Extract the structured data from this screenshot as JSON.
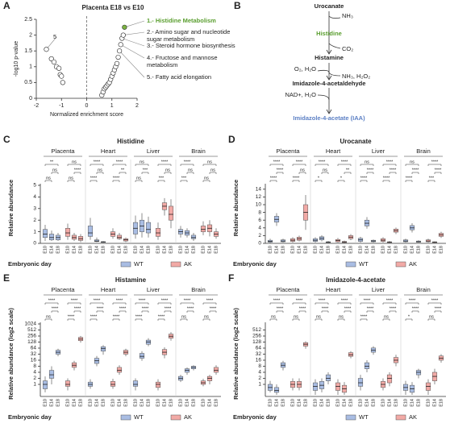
{
  "chart_data": [
    {
      "type": "scatter",
      "panel": "A",
      "title": "Placenta E18 vs E10",
      "xlabel": "Normalized enrichment score",
      "ylabel": "-log10 p-value",
      "x": [
        -1.6,
        -1.4,
        -1.3,
        -1.2,
        -1.1,
        -1.05,
        -1.0,
        -0.95,
        0.6,
        0.65,
        0.7,
        0.75,
        0.8,
        0.85,
        0.9,
        0.95,
        1.0,
        1.05,
        1.1,
        1.15,
        1.2,
        1.25,
        1.3,
        1.35,
        1.4,
        1.45,
        1.5
      ],
      "y": [
        1.55,
        1.25,
        1.15,
        1.0,
        0.95,
        0.75,
        0.7,
        0.5,
        0.1,
        0.2,
        0.3,
        0.35,
        0.4,
        0.45,
        0.5,
        0.6,
        0.7,
        0.8,
        0.9,
        1.0,
        1.1,
        1.3,
        1.5,
        1.7,
        1.9,
        2.0,
        2.25
      ],
      "xlim": [
        -2,
        2
      ],
      "ylim": [
        0,
        2.5
      ],
      "xticks": [
        -2,
        -1,
        0,
        1,
        2
      ],
      "yticks": [
        0,
        0.5,
        1,
        1.5,
        2,
        2.5
      ],
      "color": "#ffffff",
      "highlight": 26,
      "highlight_color": "#7cb342",
      "annotations": [
        {
          "lines": [
            "1.- Histidine Metabolism"
          ],
          "point": 26,
          "color": "#5a9e2f"
        },
        {
          "lines": [
            "2.- Amino sugar and nucleotide",
            "sugar metabolism"
          ],
          "point": 25,
          "color": "#222222"
        },
        {
          "lines": [
            "3.- Steroid hormone biosynthesis"
          ],
          "point": 24,
          "color": "#222222"
        },
        {
          "lines": [
            "4.- Fructose and mannose",
            "metabolism"
          ],
          "point": 23,
          "color": "#222222"
        },
        {
          "lines": [
            "5.- Fatty acid elongation"
          ],
          "point": 22,
          "color": "#222222"
        },
        {
          "lines": [
            "5"
          ],
          "point": 0,
          "color": "#222222"
        }
      ]
    },
    {
      "type": "box",
      "panel": "C",
      "title": "Histidine",
      "ylabel": "Relative abundance",
      "xlabel": "Embryonic day",
      "groups": [
        "Placenta",
        "Heart",
        "Liver",
        "Brain"
      ],
      "timepoints": [
        "E10",
        "E14",
        "E18"
      ],
      "ylim": [
        0,
        5
      ],
      "yticks": [
        0,
        1,
        2,
        3,
        4,
        5
      ],
      "series": [
        {
          "name": "WT",
          "color": "#a9bde3",
          "values": [
            [
              0.2,
              0.5,
              0.8,
              1.2,
              1.6
            ],
            [
              0.2,
              0.3,
              0.5,
              0.8,
              1.1
            ],
            [
              0.2,
              0.3,
              0.5,
              0.7,
              0.9
            ],
            [
              0.3,
              0.6,
              0.9,
              1.5,
              2.2
            ],
            [
              0.1,
              0.15,
              0.2,
              0.3,
              0.5
            ],
            [
              0.05,
              0.08,
              0.1,
              0.15,
              0.2
            ],
            [
              0.4,
              0.8,
              1.3,
              1.8,
              2.4
            ],
            [
              0.5,
              1.0,
              1.5,
              2.0,
              2.6
            ],
            [
              0.5,
              0.9,
              1.2,
              1.8,
              2.3
            ],
            [
              0.5,
              0.8,
              1.0,
              1.2,
              1.5
            ],
            [
              0.5,
              0.7,
              0.9,
              1.1,
              1.3
            ],
            [
              0.2,
              0.4,
              0.5,
              0.7,
              0.9
            ]
          ]
        },
        {
          "name": "AK",
          "color": "#f2aaa6",
          "values": [
            [
              0.3,
              0.6,
              0.9,
              1.3,
              1.7
            ],
            [
              0.2,
              0.35,
              0.5,
              0.7,
              0.9
            ],
            [
              0.1,
              0.25,
              0.4,
              0.6,
              0.8
            ],
            [
              0.4,
              0.6,
              0.8,
              1.0,
              1.3
            ],
            [
              0.3,
              0.4,
              0.5,
              0.7,
              0.9
            ],
            [
              0.1,
              0.2,
              0.3,
              0.4,
              0.5
            ],
            [
              0.3,
              0.6,
              0.9,
              1.3,
              1.8
            ],
            [
              2.4,
              2.9,
              3.2,
              3.5,
              3.9
            ],
            [
              1.3,
              2.0,
              2.5,
              3.2,
              3.8
            ],
            [
              0.7,
              1.0,
              1.2,
              1.5,
              1.9
            ],
            [
              0.6,
              1.0,
              1.3,
              1.6,
              2.0
            ],
            [
              0.4,
              0.6,
              0.8,
              1.0,
              1.3
            ]
          ]
        }
      ],
      "significance": [
        [
          "ns",
          "ns",
          "**",
          "ns",
          "****",
          "ns"
        ],
        [
          "****",
          "ns",
          "****",
          "****",
          "**",
          "****"
        ],
        [
          "ns",
          "***",
          "ns",
          "***",
          "ns",
          "****"
        ],
        [
          "***",
          "ns",
          "****",
          "ns",
          "ns",
          "ns"
        ]
      ]
    },
    {
      "type": "box",
      "panel": "D",
      "title": "Urocanate",
      "ylabel": "Relative abundance",
      "xlabel": "Embryonic day",
      "groups": [
        "Placenta",
        "Heart",
        "Liver",
        "Brain"
      ],
      "timepoints": [
        "E10",
        "E14",
        "E18"
      ],
      "ylim": [
        0,
        15
      ],
      "yticks": [
        0,
        2,
        4,
        6,
        8,
        10,
        12,
        14
      ],
      "series": [
        {
          "name": "WT",
          "color": "#a9bde3",
          "values": [
            [
              0.1,
              0.3,
              0.5,
              0.8,
              1.2
            ],
            [
              4.5,
              5.5,
              6.2,
              7.0,
              7.8
            ],
            [
              0.2,
              0.4,
              0.6,
              0.9,
              1.2
            ],
            [
              0.2,
              0.5,
              0.8,
              1.2,
              1.6
            ],
            [
              0.5,
              0.9,
              1.3,
              1.7,
              2.1
            ],
            [
              0.1,
              0.2,
              0.3,
              0.4,
              0.6
            ],
            [
              0.2,
              0.5,
              0.9,
              1.3,
              1.7
            ],
            [
              3.8,
              4.5,
              5.2,
              6.0,
              6.8
            ],
            [
              0.2,
              0.4,
              0.6,
              0.8,
              1.0
            ],
            [
              0.2,
              0.4,
              0.6,
              0.9,
              1.2
            ],
            [
              2.8,
              3.5,
              4.0,
              4.6,
              5.2
            ],
            [
              0.2,
              0.3,
              0.4,
              0.6,
              0.8
            ]
          ]
        },
        {
          "name": "AK",
          "color": "#f2aaa6",
          "values": [
            [
              0.2,
              0.5,
              0.8,
              1.2,
              1.6
            ],
            [
              0.5,
              0.8,
              1.2,
              1.6,
              2.0
            ],
            [
              3.5,
              6.0,
              8.0,
              10.0,
              12.5
            ],
            [
              0.2,
              0.4,
              0.7,
              1.0,
              1.4
            ],
            [
              0.1,
              0.2,
              0.3,
              0.5,
              0.7
            ],
            [
              0.8,
              1.2,
              1.6,
              2.0,
              2.4
            ],
            [
              0.2,
              0.5,
              0.8,
              1.2,
              1.6
            ],
            [
              0.1,
              0.2,
              0.3,
              0.4,
              0.6
            ],
            [
              2.4,
              2.9,
              3.3,
              3.7,
              4.1
            ],
            [
              0.2,
              0.4,
              0.6,
              0.9,
              1.2
            ],
            [
              0.1,
              0.2,
              0.3,
              0.4,
              0.5
            ],
            [
              1.4,
              1.8,
              2.2,
              2.6,
              3.0
            ]
          ]
        }
      ],
      "significance": [
        [
          "****",
          "****",
          "****",
          "****",
          "ns",
          "****"
        ],
        [
          "*",
          "ns",
          "****",
          "*",
          "**",
          "****"
        ],
        [
          "****",
          "****",
          "ns",
          "****",
          "****",
          "****"
        ],
        [
          "****",
          "****",
          "ns",
          "***",
          "****",
          "****"
        ]
      ]
    },
    {
      "type": "box",
      "panel": "E",
      "title": "Histamine",
      "ylabel": "Relative abundance (log2 scale)",
      "xlabel": "Embryonic day",
      "groups": [
        "Placenta",
        "Heart",
        "Liver",
        "Brain"
      ],
      "timepoints": [
        "E10",
        "E14",
        "E18"
      ],
      "log_base": 2,
      "ylim": [
        0.25,
        1024
      ],
      "yticks": [
        1,
        2,
        4,
        8,
        16,
        32,
        64,
        128,
        256,
        512,
        1024
      ],
      "series": [
        {
          "name": "WT",
          "color": "#a9bde3",
          "values": [
            [
              0.4,
              0.6,
              1,
              1.5,
              2.5
            ],
            [
              1,
              2,
              3,
              5,
              8
            ],
            [
              25,
              32,
              40,
              50,
              60
            ],
            [
              0.6,
              0.8,
              1,
              1.3,
              1.8
            ],
            [
              8,
              11,
              15,
              20,
              26
            ],
            [
              30,
              45,
              60,
              75,
              90
            ],
            [
              0.5,
              0.8,
              1,
              1.5,
              2
            ],
            [
              15,
              20,
              25,
              35,
              45
            ],
            [
              80,
              100,
              130,
              160,
              200
            ],
            [
              1.3,
              1.6,
              2,
              2.5,
              3
            ],
            [
              3,
              4,
              5,
              6,
              7
            ],
            [
              5,
              6,
              7,
              8,
              9
            ]
          ]
        },
        {
          "name": "AK",
          "color": "#f2aaa6",
          "values": [
            [
              0.5,
              0.8,
              1,
              1.5,
              2
            ],
            [
              5,
              7,
              9,
              12,
              15
            ],
            [
              120,
              150,
              180,
              220,
              260
            ],
            [
              0.6,
              0.8,
              1,
              1.4,
              1.9
            ],
            [
              3,
              4,
              5,
              7,
              9
            ],
            [
              25,
              32,
              40,
              50,
              60
            ],
            [
              0.5,
              0.7,
              1,
              1.3,
              1.8
            ],
            [
              20,
              30,
              40,
              55,
              70
            ],
            [
              150,
              200,
              250,
              320,
              400
            ],
            [
              0.8,
              1,
              1.2,
              1.5,
              1.9
            ],
            [
              1,
              1.5,
              2,
              2.5,
              3
            ],
            [
              3,
              4,
              5,
              7,
              9
            ]
          ]
        }
      ],
      "significance": [
        [
          "ns",
          "****",
          "****",
          "****",
          "****",
          "****"
        ],
        [
          "****",
          "****",
          "****",
          "****",
          "****",
          "****"
        ],
        [
          "****",
          "****",
          "****",
          "****",
          "****",
          "****"
        ],
        [
          "ns",
          "****",
          "****",
          "ns",
          "****",
          "****"
        ]
      ]
    },
    {
      "type": "box",
      "panel": "F",
      "title": "Imidazole-4-acetate",
      "ylabel": "Relative abundance (log2 scale)",
      "xlabel": "Embryonic day",
      "groups": [
        "Placenta",
        "Heart",
        "Liver",
        "Brain"
      ],
      "timepoints": [
        "E10",
        "E14",
        "E18"
      ],
      "log_base": 2,
      "ylim": [
        0.25,
        1024
      ],
      "yticks": [
        1,
        2,
        4,
        8,
        16,
        32,
        64,
        128,
        256,
        512
      ],
      "series": [
        {
          "name": "WT",
          "color": "#a9bde3",
          "values": [
            [
              0.4,
              0.5,
              0.7,
              1,
              1.5
            ],
            [
              0.3,
              0.4,
              0.5,
              0.7,
              1
            ],
            [
              5,
              7,
              9,
              12,
              15
            ],
            [
              0.3,
              0.5,
              0.8,
              1.2,
              1.8
            ],
            [
              0.4,
              0.6,
              0.9,
              1.4,
              2
            ],
            [
              1,
              1.5,
              2,
              3,
              4
            ],
            [
              0.5,
              0.8,
              1.2,
              2,
              3
            ],
            [
              4,
              6,
              8,
              12,
              16
            ],
            [
              30,
              40,
              50,
              65,
              80
            ],
            [
              0.3,
              0.5,
              0.7,
              1,
              1.5
            ],
            [
              0.3,
              0.4,
              0.6,
              0.9,
              1.3
            ],
            [
              2,
              3,
              4,
              5,
              6
            ]
          ]
        },
        {
          "name": "AK",
          "color": "#f2aaa6",
          "values": [
            [
              0.5,
              0.7,
              1,
              1.4,
              2
            ],
            [
              0.5,
              0.7,
              1,
              1.4,
              2
            ],
            [
              60,
              80,
              100,
              120,
              140
            ],
            [
              0.3,
              0.5,
              0.8,
              1.2,
              1.8
            ],
            [
              0.3,
              0.4,
              0.6,
              0.9,
              1.3
            ],
            [
              20,
              25,
              30,
              38,
              45
            ],
            [
              0.5,
              0.7,
              1,
              1.4,
              2
            ],
            [
              0.8,
              1.2,
              2,
              3,
              4
            ],
            [
              8,
              12,
              16,
              22,
              30
            ],
            [
              0.3,
              0.5,
              0.8,
              1.2,
              1.8
            ],
            [
              1,
              1.5,
              2.5,
              4,
              6
            ],
            [
              12,
              16,
              20,
              26,
              32
            ]
          ]
        }
      ],
      "significance": [
        [
          "ns",
          "****",
          "****",
          "ns",
          "****",
          "****"
        ],
        [
          "ns",
          "****",
          "****",
          "ns",
          "****",
          "****"
        ],
        [
          "****",
          "****",
          "****",
          "ns",
          "****",
          "****"
        ],
        [
          "*",
          "****",
          "****",
          "ns",
          "****",
          "****"
        ]
      ]
    }
  ],
  "pathway": {
    "panel": "B",
    "compounds": [
      {
        "text": "Urocanate",
        "color": "#222222"
      },
      {
        "text": "Histidine",
        "color": "#5a9e2f"
      },
      {
        "text": "Histamine",
        "color": "#222222"
      },
      {
        "text": "Imidazole-4-acetaldehyde",
        "color": "#222222"
      },
      {
        "text": "Imidazole-4-acetate (IAA)",
        "color": "#5b7fc4"
      }
    ],
    "cofactors": [
      "NH₃",
      "CO₂",
      "O₂, H₂O",
      "NH₃, H₂O₂",
      "NAD+, H₂O"
    ]
  }
}
